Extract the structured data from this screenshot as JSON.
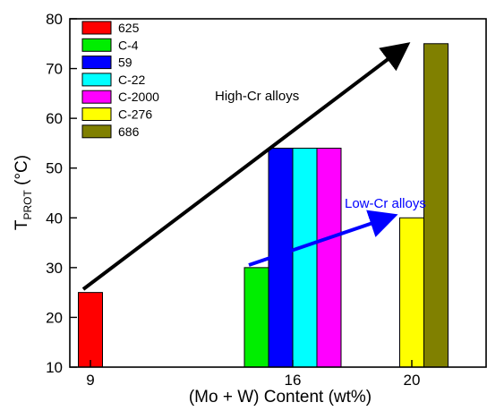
{
  "chart_data": {
    "type": "bar",
    "xlabel": "(Mo + W) Content (wt%)",
    "ylabel": "T",
    "ylabel_sub": "PROT",
    "ylabel_unit": " (°C)",
    "ylim": [
      10,
      80
    ],
    "yticks": [
      "10",
      "20",
      "30",
      "40",
      "50",
      "60",
      "70",
      "80"
    ],
    "xticks": [
      "9",
      "16",
      "20"
    ],
    "grid": false,
    "legend_position": "top-left",
    "series": [
      {
        "name": "625",
        "x": "9",
        "value": 25,
        "color": "#ff0000"
      },
      {
        "name": "C-4",
        "x": "16",
        "value": 30,
        "color": "#00ee00"
      },
      {
        "name": "59",
        "x": "16",
        "value": 54,
        "color": "#0000ff"
      },
      {
        "name": "C-22",
        "x": "16",
        "value": 54,
        "color": "#00ffff"
      },
      {
        "name": "C-2000",
        "x": "16",
        "value": 54,
        "color": "#ff00ff"
      },
      {
        "name": "C-276",
        "x": "20",
        "value": 40,
        "color": "#ffff00"
      },
      {
        "name": "686",
        "x": "20",
        "value": 75,
        "color": "#808000"
      }
    ],
    "annotations": [
      {
        "text": "High-Cr alloys",
        "color": "#000000"
      },
      {
        "text": "Low-Cr alloys",
        "color": "#0000ff"
      }
    ]
  }
}
